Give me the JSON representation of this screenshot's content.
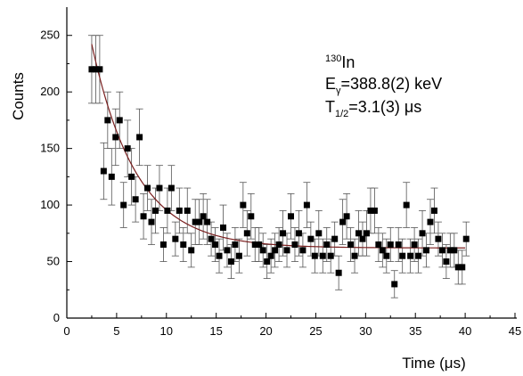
{
  "chart_data": {
    "type": "scatter",
    "xlabel": "Time (μs)",
    "ylabel": "Counts",
    "xlim": [
      0,
      45
    ],
    "ylim": [
      0,
      275
    ],
    "xticks": [
      0,
      5,
      10,
      15,
      20,
      25,
      30,
      35,
      40,
      45
    ],
    "yticks": [
      0,
      50,
      100,
      150,
      200,
      250
    ],
    "grid": false,
    "annotation": {
      "nucleus_mass": "130",
      "nucleus_symbol": "In",
      "energy_prefix": "E",
      "energy_sub": "γ",
      "energy_value": "=388.8(2) keV",
      "halflife_prefix": "T",
      "halflife_sub": "1/2",
      "halflife_value": "=3.1(3) μs"
    },
    "series": [
      {
        "marker": "square",
        "color": "#000000",
        "points": [
          {
            "x": 2.5,
            "y": 220,
            "err": 30
          },
          {
            "x": 2.9,
            "y": 220,
            "err": 30
          },
          {
            "x": 3.3,
            "y": 220,
            "err": 30
          },
          {
            "x": 3.7,
            "y": 130,
            "err": 25
          },
          {
            "x": 4.1,
            "y": 175,
            "err": 25
          },
          {
            "x": 4.5,
            "y": 125,
            "err": 25
          },
          {
            "x": 4.9,
            "y": 160,
            "err": 25
          },
          {
            "x": 5.3,
            "y": 175,
            "err": 25
          },
          {
            "x": 5.7,
            "y": 100,
            "err": 20
          },
          {
            "x": 6.1,
            "y": 150,
            "err": 25
          },
          {
            "x": 6.5,
            "y": 125,
            "err": 25
          },
          {
            "x": 6.9,
            "y": 105,
            "err": 20
          },
          {
            "x": 7.3,
            "y": 160,
            "err": 25
          },
          {
            "x": 7.7,
            "y": 90,
            "err": 20
          },
          {
            "x": 8.1,
            "y": 115,
            "err": 20
          },
          {
            "x": 8.5,
            "y": 85,
            "err": 20
          },
          {
            "x": 8.9,
            "y": 95,
            "err": 20
          },
          {
            "x": 9.3,
            "y": 115,
            "err": 20
          },
          {
            "x": 9.7,
            "y": 65,
            "err": 15
          },
          {
            "x": 10.1,
            "y": 95,
            "err": 20
          },
          {
            "x": 10.5,
            "y": 115,
            "err": 20
          },
          {
            "x": 10.9,
            "y": 70,
            "err": 15
          },
          {
            "x": 11.3,
            "y": 95,
            "err": 20
          },
          {
            "x": 11.7,
            "y": 65,
            "err": 15
          },
          {
            "x": 12.1,
            "y": 95,
            "err": 20
          },
          {
            "x": 12.5,
            "y": 60,
            "err": 15
          },
          {
            "x": 12.9,
            "y": 85,
            "err": 20
          },
          {
            "x": 13.3,
            "y": 85,
            "err": 20
          },
          {
            "x": 13.7,
            "y": 90,
            "err": 20
          },
          {
            "x": 14.1,
            "y": 85,
            "err": 20
          },
          {
            "x": 14.5,
            "y": 70,
            "err": 15
          },
          {
            "x": 14.9,
            "y": 65,
            "err": 15
          },
          {
            "x": 15.3,
            "y": 55,
            "err": 15
          },
          {
            "x": 15.7,
            "y": 80,
            "err": 20
          },
          {
            "x": 16.1,
            "y": 60,
            "err": 15
          },
          {
            "x": 16.5,
            "y": 50,
            "err": 15
          },
          {
            "x": 16.9,
            "y": 65,
            "err": 15
          },
          {
            "x": 17.3,
            "y": 55,
            "err": 15
          },
          {
            "x": 17.7,
            "y": 100,
            "err": 20
          },
          {
            "x": 18.1,
            "y": 75,
            "err": 20
          },
          {
            "x": 18.5,
            "y": 90,
            "err": 20
          },
          {
            "x": 18.9,
            "y": 65,
            "err": 15
          },
          {
            "x": 19.3,
            "y": 65,
            "err": 15
          },
          {
            "x": 19.7,
            "y": 60,
            "err": 15
          },
          {
            "x": 20.1,
            "y": 50,
            "err": 15
          },
          {
            "x": 20.5,
            "y": 55,
            "err": 15
          },
          {
            "x": 20.9,
            "y": 60,
            "err": 15
          },
          {
            "x": 21.3,
            "y": 65,
            "err": 15
          },
          {
            "x": 21.7,
            "y": 75,
            "err": 20
          },
          {
            "x": 22.1,
            "y": 60,
            "err": 15
          },
          {
            "x": 22.5,
            "y": 90,
            "err": 20
          },
          {
            "x": 22.9,
            "y": 65,
            "err": 15
          },
          {
            "x": 23.3,
            "y": 75,
            "err": 20
          },
          {
            "x": 23.7,
            "y": 60,
            "err": 15
          },
          {
            "x": 24.1,
            "y": 100,
            "err": 20
          },
          {
            "x": 24.5,
            "y": 70,
            "err": 15
          },
          {
            "x": 24.9,
            "y": 55,
            "err": 15
          },
          {
            "x": 25.3,
            "y": 75,
            "err": 20
          },
          {
            "x": 25.7,
            "y": 55,
            "err": 15
          },
          {
            "x": 26.1,
            "y": 65,
            "err": 15
          },
          {
            "x": 26.5,
            "y": 55,
            "err": 15
          },
          {
            "x": 26.9,
            "y": 70,
            "err": 15
          },
          {
            "x": 27.3,
            "y": 40,
            "err": 15
          },
          {
            "x": 27.7,
            "y": 85,
            "err": 20
          },
          {
            "x": 28.1,
            "y": 90,
            "err": 20
          },
          {
            "x": 28.5,
            "y": 65,
            "err": 15
          },
          {
            "x": 28.9,
            "y": 55,
            "err": 15
          },
          {
            "x": 29.3,
            "y": 75,
            "err": 20
          },
          {
            "x": 29.7,
            "y": 70,
            "err": 15
          },
          {
            "x": 30.1,
            "y": 75,
            "err": 20
          },
          {
            "x": 30.5,
            "y": 95,
            "err": 20
          },
          {
            "x": 30.9,
            "y": 95,
            "err": 20
          },
          {
            "x": 31.3,
            "y": 65,
            "err": 15
          },
          {
            "x": 31.7,
            "y": 60,
            "err": 15
          },
          {
            "x": 32.1,
            "y": 55,
            "err": 15
          },
          {
            "x": 32.5,
            "y": 65,
            "err": 15
          },
          {
            "x": 32.9,
            "y": 30,
            "err": 12
          },
          {
            "x": 33.3,
            "y": 65,
            "err": 15
          },
          {
            "x": 33.7,
            "y": 55,
            "err": 15
          },
          {
            "x": 34.1,
            "y": 100,
            "err": 20
          },
          {
            "x": 34.5,
            "y": 55,
            "err": 15
          },
          {
            "x": 34.9,
            "y": 65,
            "err": 15
          },
          {
            "x": 35.3,
            "y": 55,
            "err": 15
          },
          {
            "x": 35.7,
            "y": 75,
            "err": 20
          },
          {
            "x": 36.1,
            "y": 60,
            "err": 15
          },
          {
            "x": 36.5,
            "y": 85,
            "err": 20
          },
          {
            "x": 36.9,
            "y": 95,
            "err": 20
          },
          {
            "x": 37.3,
            "y": 70,
            "err": 15
          },
          {
            "x": 37.7,
            "y": 60,
            "err": 15
          },
          {
            "x": 38.1,
            "y": 50,
            "err": 15
          },
          {
            "x": 38.5,
            "y": 60,
            "err": 15
          },
          {
            "x": 38.9,
            "y": 60,
            "err": 15
          },
          {
            "x": 39.3,
            "y": 45,
            "err": 15
          },
          {
            "x": 39.7,
            "y": 45,
            "err": 15
          },
          {
            "x": 40.1,
            "y": 70,
            "err": 15
          }
        ]
      }
    ],
    "fit": {
      "type": "exponential decay",
      "color": "#7a1f1f",
      "x_start": 2.5,
      "x_end": 40,
      "y0": 62,
      "amplitude": 282,
      "half_life": 3.1
    }
  }
}
